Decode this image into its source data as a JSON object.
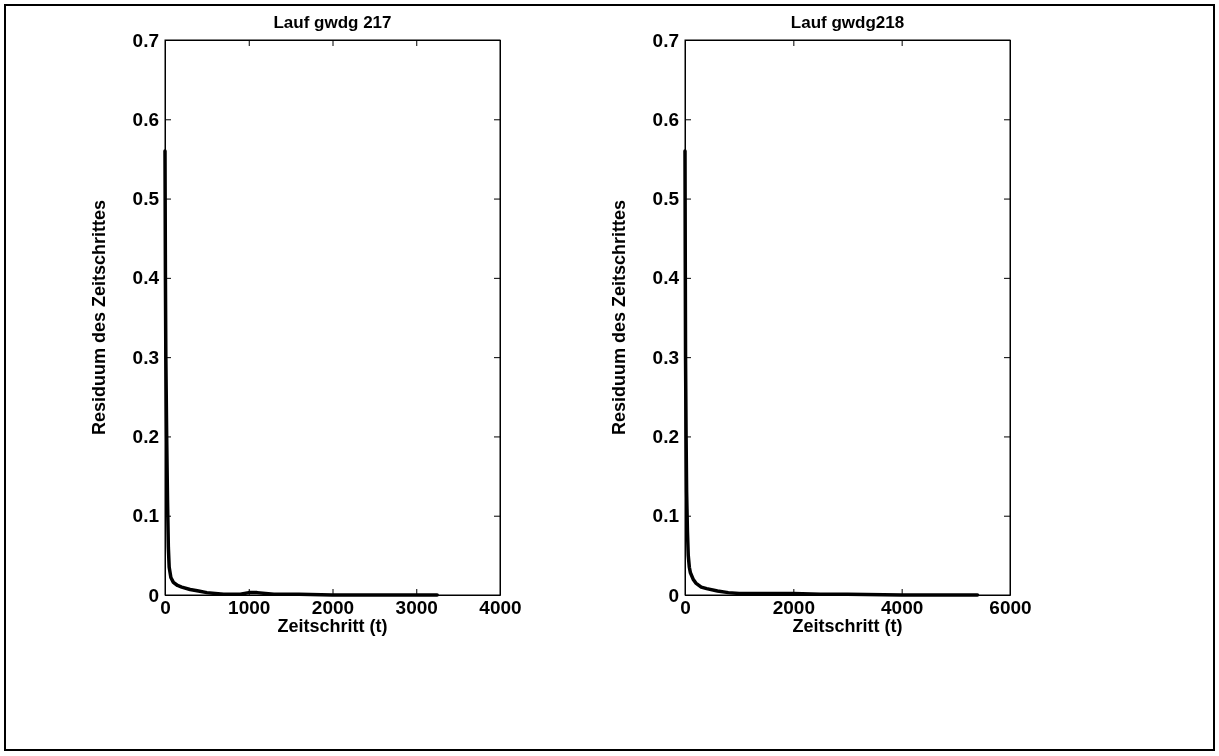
{
  "chart_data": [
    {
      "type": "line",
      "title": "Lauf gwdg 217",
      "xlabel": "Zeitschritt (t)",
      "ylabel": "Residuum des Zeitschrittes",
      "xlim": [
        0,
        4000
      ],
      "xticks": [
        0,
        1000,
        2000,
        3000,
        4000
      ],
      "ylim": [
        0,
        0.7
      ],
      "yticks": [
        0,
        0.1,
        0.2,
        0.3,
        0.4,
        0.5,
        0.6,
        0.7
      ],
      "grid": false,
      "series": [
        {
          "color": "#000000",
          "x": [
            0,
            5,
            10,
            20,
            30,
            40,
            50,
            70,
            100,
            150,
            200,
            300,
            400,
            500,
            600,
            700,
            900,
            1000,
            1100,
            1200,
            1300,
            1600,
            2000,
            2500,
            3000,
            3250
          ],
          "values": [
            0.56,
            0.4,
            0.3,
            0.2,
            0.12,
            0.06,
            0.035,
            0.022,
            0.016,
            0.012,
            0.01,
            0.007,
            0.005,
            0.003,
            0.002,
            0.001,
            0.001,
            0.003,
            0.003,
            0.002,
            0.001,
            0.001,
            0,
            0,
            0,
            0
          ]
        }
      ]
    },
    {
      "type": "line",
      "title": "Lauf gwdg218",
      "xlabel": "Zeitschritt (t)",
      "ylabel": "Residuum des Zeitschrittes",
      "xlim": [
        0,
        6000
      ],
      "xticks": [
        0,
        2000,
        4000,
        6000
      ],
      "ylim": [
        0,
        0.7
      ],
      "yticks": [
        0,
        0.1,
        0.2,
        0.3,
        0.4,
        0.5,
        0.6,
        0.7
      ],
      "grid": false,
      "series": [
        {
          "color": "#000000",
          "x": [
            0,
            5,
            10,
            20,
            30,
            45,
            60,
            80,
            100,
            150,
            200,
            300,
            400,
            600,
            800,
            1000,
            1300,
            1700,
            2000,
            2500,
            3000,
            4000,
            5000,
            5400
          ],
          "values": [
            0.56,
            0.42,
            0.3,
            0.2,
            0.13,
            0.08,
            0.05,
            0.035,
            0.028,
            0.02,
            0.015,
            0.01,
            0.008,
            0.005,
            0.003,
            0.002,
            0.002,
            0.002,
            0.002,
            0.001,
            0.001,
            0,
            0,
            0
          ]
        }
      ]
    }
  ]
}
